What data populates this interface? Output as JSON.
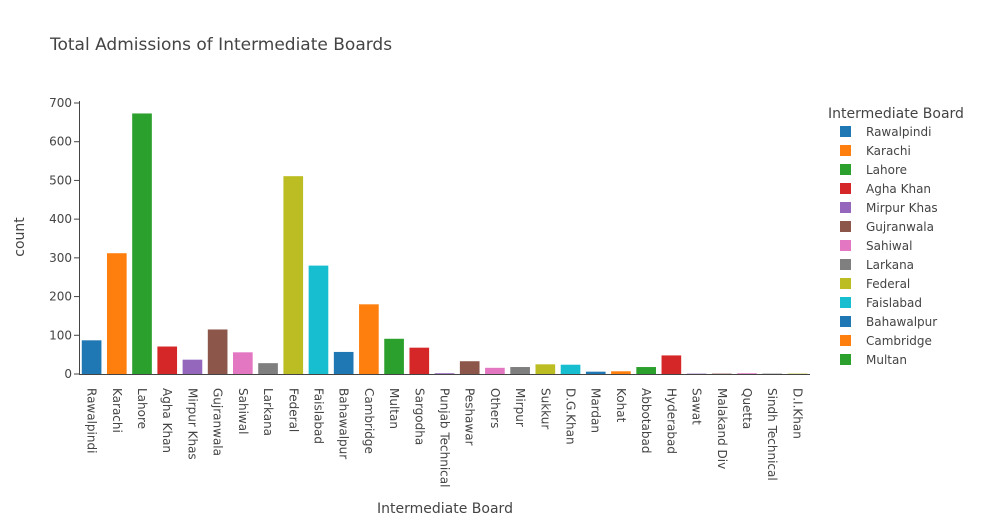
{
  "chart_data": {
    "type": "bar",
    "title": "Total Admissions of Intermediate Boards",
    "xlabel": "Intermediate Board",
    "ylabel": "count",
    "ylim": [
      0,
      700
    ],
    "yticks": [
      0,
      100,
      200,
      300,
      400,
      500,
      600,
      700
    ],
    "grid": false,
    "legend_title": "Intermediate Board",
    "legend_position": "right",
    "categories": [
      "Rawalpindi",
      "Karachi",
      "Lahore",
      "Agha Khan",
      "Mirpur Khas",
      "Gujranwala",
      "Sahiwal",
      "Larkana",
      "Federal",
      "Faislabad",
      "Bahawalpur",
      "Cambridge",
      "Multan",
      "Sargodha",
      "Punjab Technical",
      "Peshawar",
      "Others",
      "Mirpur",
      "Sukkur",
      "D.G.Khan",
      "Mardan",
      "Kohat",
      "Abbotabad",
      "Hyderabad",
      "Sawat",
      "Malakand Div",
      "Quetta",
      "Sindh Technical",
      "D.I.Khan"
    ],
    "values": [
      87,
      312,
      673,
      71,
      37,
      115,
      56,
      28,
      511,
      280,
      57,
      180,
      91,
      68,
      2,
      33,
      16,
      18,
      25,
      24,
      6,
      7,
      18,
      48,
      1,
      1,
      2,
      1,
      1
    ],
    "colors": [
      "#1f77b4",
      "#ff7f0e",
      "#2ca02c",
      "#d62728",
      "#9467bd",
      "#8c564b",
      "#e377c2",
      "#7f7f7f",
      "#bcbd22",
      "#17becf",
      "#1f77b4",
      "#ff7f0e",
      "#2ca02c",
      "#d62728",
      "#9467bd",
      "#8c564b",
      "#e377c2",
      "#7f7f7f",
      "#bcbd22",
      "#17becf",
      "#1f77b4",
      "#ff7f0e",
      "#2ca02c",
      "#d62728",
      "#9467bd",
      "#8c564b",
      "#e377c2",
      "#7f7f7f",
      "#bcbd22"
    ],
    "legend_entries": [
      "Rawalpindi",
      "Karachi",
      "Lahore",
      "Agha Khan",
      "Mirpur Khas",
      "Gujranwala",
      "Sahiwal",
      "Larkana",
      "Federal",
      "Faislabad",
      "Bahawalpur",
      "Cambridge",
      "Multan"
    ]
  }
}
